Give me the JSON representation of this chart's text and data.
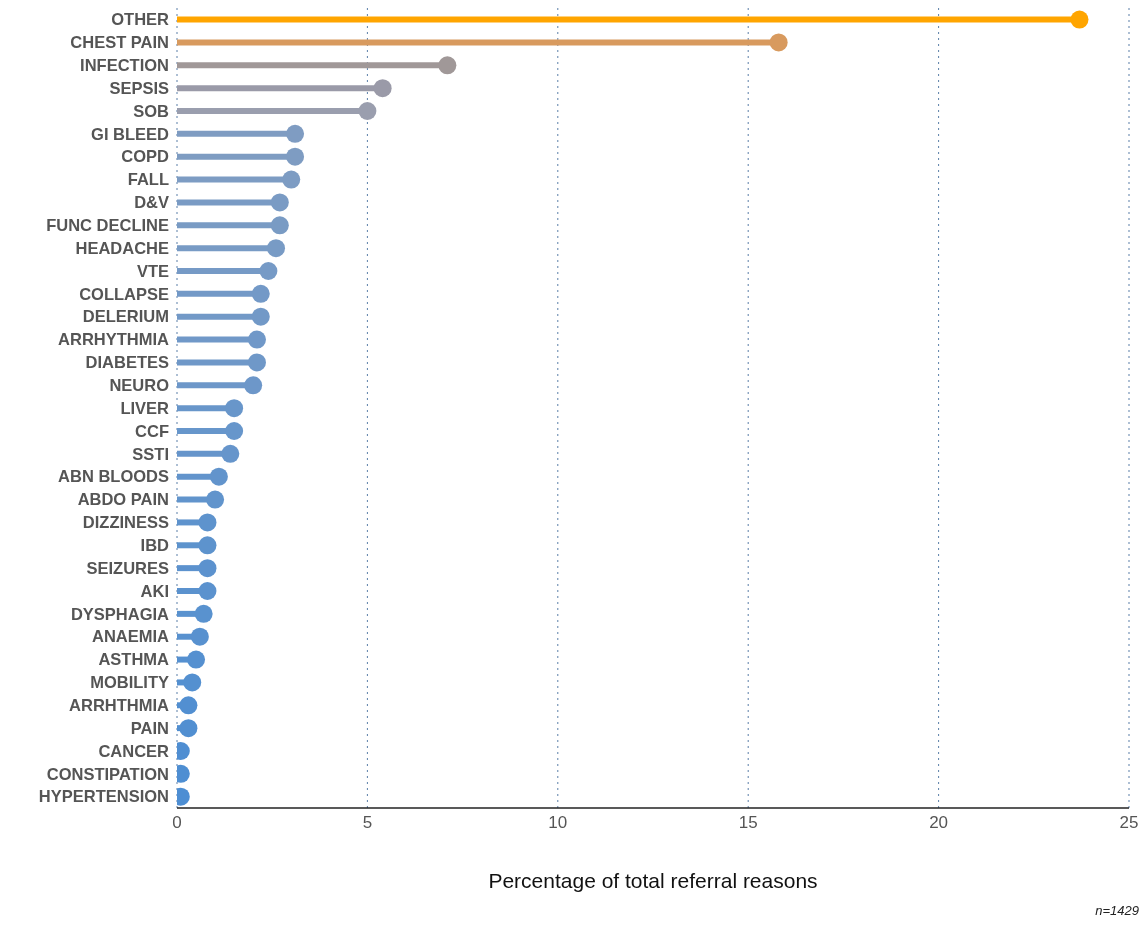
{
  "chart_data": {
    "type": "lollipop",
    "orientation": "horizontal",
    "xlabel": "Percentage of total referral reasons",
    "categories": [
      "OTHER",
      "CHEST PAIN",
      "INFECTION",
      "SEPSIS",
      "SOB",
      "GI BLEED",
      "COPD",
      "FALL",
      "D&V",
      "FUNC DECLINE",
      "HEADACHE",
      "VTE",
      "COLLAPSE",
      "DELERIUM",
      "ARRHYTHMIA",
      "DIABETES",
      "NEURO",
      "LIVER",
      "CCF",
      "SSTI",
      "ABN BLOODS",
      "ABDO PAIN",
      "DIZZINESS",
      "IBD",
      "SEIZURES",
      "AKI",
      "DYSPHAGIA",
      "ANAEMIA",
      "ASTHMA",
      "MOBILITY",
      "ARRHTHMIA",
      "PAIN",
      "CANCER",
      "CONSTIPATION",
      "HYPERTENSION"
    ],
    "values": [
      23.7,
      15.8,
      7.1,
      5.4,
      5.0,
      3.1,
      3.1,
      3.0,
      2.7,
      2.7,
      2.6,
      2.4,
      2.2,
      2.2,
      2.1,
      2.1,
      2.0,
      1.5,
      1.5,
      1.4,
      1.1,
      1.0,
      0.8,
      0.8,
      0.8,
      0.8,
      0.7,
      0.6,
      0.5,
      0.4,
      0.3,
      0.3,
      0.1,
      0.1,
      0.1
    ],
    "colors": [
      "#ffa500",
      "#d89a5e",
      "#a09898",
      "#9a9aa8",
      "#9a9eae",
      "#7f9cc2",
      "#7e9cc2",
      "#7d9cc3",
      "#7a9bc4",
      "#799bc4",
      "#789bc5",
      "#769ac6",
      "#7399c7",
      "#7299c7",
      "#7098c8",
      "#6f98c8",
      "#6d97c9",
      "#6896ca",
      "#6796cb",
      "#6695cb",
      "#6294cc",
      "#6194cc",
      "#5e93cd",
      "#5d93cd",
      "#5c92ce",
      "#5b92ce",
      "#5992cf",
      "#5891cf",
      "#5590d0",
      "#5490d0",
      "#528fd1",
      "#518fd1",
      "#4f8ed2",
      "#4e8ed2",
      "#4d8ed3"
    ],
    "xlim": [
      0,
      25
    ],
    "xticks": [
      0,
      5,
      10,
      15,
      20,
      25
    ],
    "grid": "x",
    "line_style": "dotted",
    "marker": "circle",
    "annotations": [
      "n=1429"
    ]
  }
}
